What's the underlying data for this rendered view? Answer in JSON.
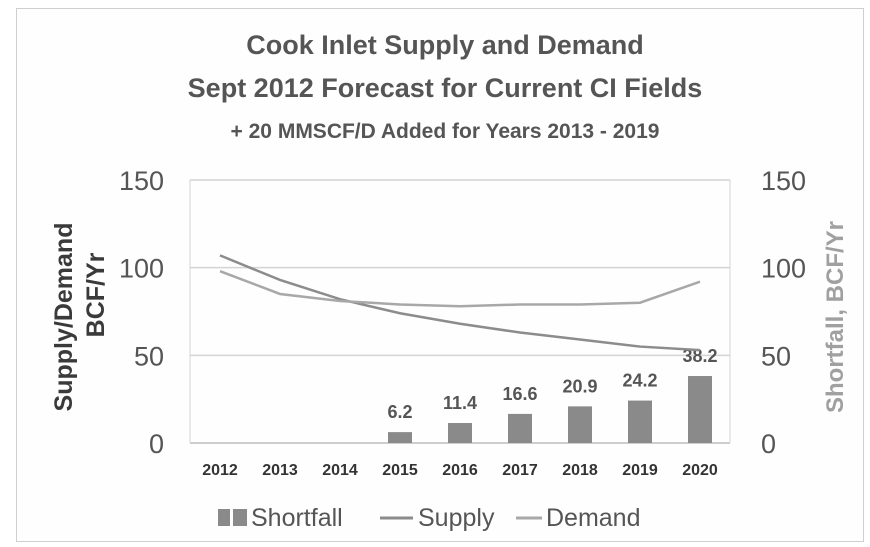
{
  "chart_data": {
    "type": "bar",
    "title": "Cook Inlet Supply and Demand",
    "subtitle": "Sept 2012 Forecast for Current CI Fields",
    "subtitle2": "+ 20 MMSCF/D Added for Years 2013 - 2019",
    "ylabel_left_line1": "Supply/Demand",
    "ylabel_left_line2": "BCF/Yr",
    "ylabel_right": "Shortfall, BCF/Yr",
    "ylim": [
      0,
      150
    ],
    "y2lim": [
      0,
      150
    ],
    "yticks": [
      "0",
      "50",
      "100",
      "150"
    ],
    "y2ticks": [
      "0",
      "50",
      "100",
      "150"
    ],
    "categories": [
      "2012",
      "2013",
      "2014",
      "2015",
      "2016",
      "2017",
      "2018",
      "2019",
      "2020"
    ],
    "grid": true,
    "legend_position": "bottom",
    "series": [
      {
        "name": "Shortfall",
        "kind": "bar",
        "axis": "right",
        "color": "#8a8a8a",
        "values": [
          0,
          0,
          0,
          6.2,
          11.4,
          16.6,
          20.9,
          24.2,
          38.2
        ],
        "labels": [
          "",
          "",
          "",
          "6.2",
          "11.4",
          "16.6",
          "20.9",
          "24.2",
          "38.2"
        ]
      },
      {
        "name": "Supply",
        "kind": "line",
        "axis": "left",
        "color": "#8c8c8c",
        "values": [
          107,
          93,
          82,
          74,
          68,
          63,
          59,
          55,
          53
        ]
      },
      {
        "name": "Demand",
        "kind": "line",
        "axis": "left",
        "color": "#a8a8a8",
        "values": [
          98,
          85,
          81,
          79,
          78,
          79,
          79,
          80,
          92
        ]
      }
    ]
  }
}
